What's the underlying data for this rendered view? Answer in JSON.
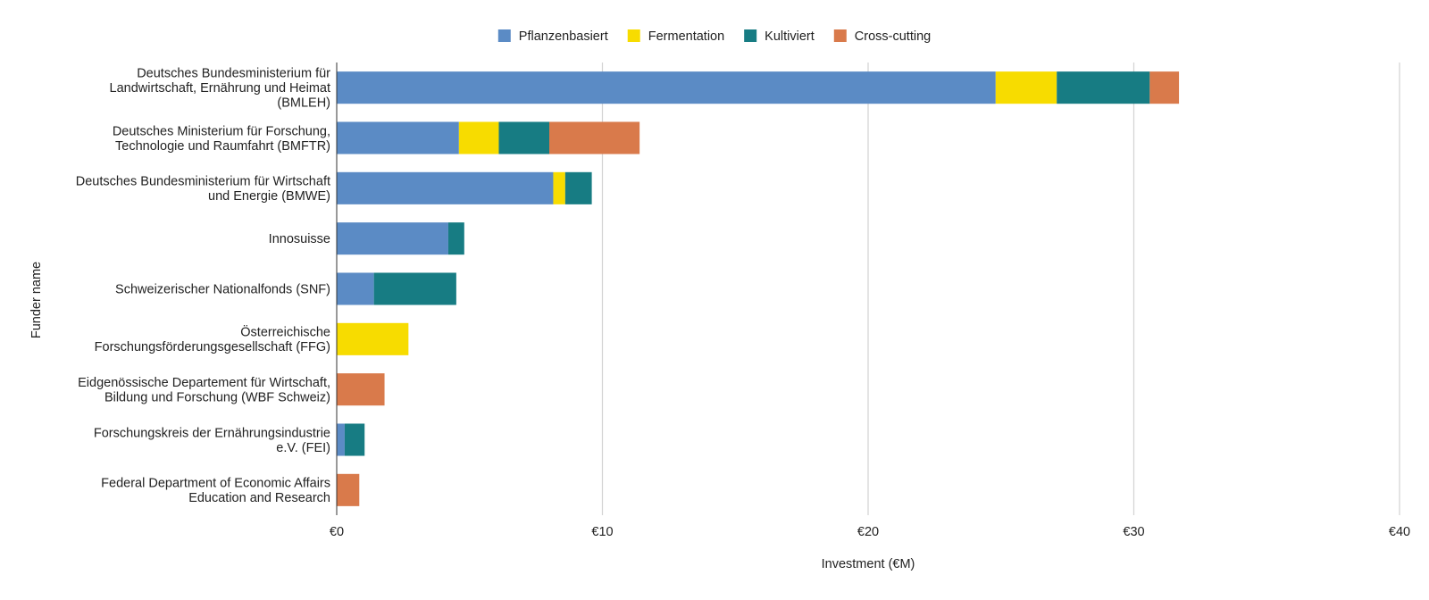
{
  "chart_data": {
    "type": "bar",
    "orientation": "horizontal",
    "stacked": true,
    "categories": [
      "Deutsches Bundesministerium für\nLandwirtschaft, Ernährung und Heimat\n(BMLEH)",
      "Deutsches Ministerium für Forschung,\nTechnologie und Raumfahrt (BMFTR)",
      "Deutsches Bundesministerium für Wirtschaft\nund Energie (BMWE)",
      "Innosuisse",
      "Schweizerischer Nationalfonds (SNF)",
      "Österreichische\nForschungsförderungsgesellschaft (FFG)",
      "Eidgenössische Departement für Wirtschaft,\nBildung und Forschung (WBF Schweiz)",
      "Forschungskreis der Ernährungsindustrie\ne.V. (FEI)",
      "Federal Department of Economic Affairs\nEducation and Research"
    ],
    "series": [
      {
        "name": "Pflanzenbasiert",
        "color": "#5b8bc5",
        "values": [
          24.8,
          4.6,
          8.15,
          4.2,
          1.4,
          0,
          0,
          0.3,
          0
        ]
      },
      {
        "name": "Fermentation",
        "color": "#f7dc00",
        "values": [
          2.3,
          1.5,
          0.45,
          0,
          0,
          2.7,
          0,
          0,
          0
        ]
      },
      {
        "name": "Kultiviert",
        "color": "#177c83",
        "values": [
          3.5,
          1.9,
          1.0,
          0.6,
          3.1,
          0,
          0,
          0.75,
          0
        ]
      },
      {
        "name": "Cross-cutting",
        "color": "#d97a4b",
        "values": [
          1.1,
          3.4,
          0,
          0,
          0,
          0,
          1.8,
          0,
          0.85
        ]
      }
    ],
    "xlabel": "Investment (€M)",
    "ylabel": "Funder name",
    "xlim": [
      0,
      40
    ],
    "xticks": [
      0,
      10,
      20,
      30,
      40
    ],
    "xtick_labels": [
      "€0",
      "€10",
      "€20",
      "€30",
      "€40"
    ],
    "grid": "vertical",
    "legend_position": "top"
  }
}
